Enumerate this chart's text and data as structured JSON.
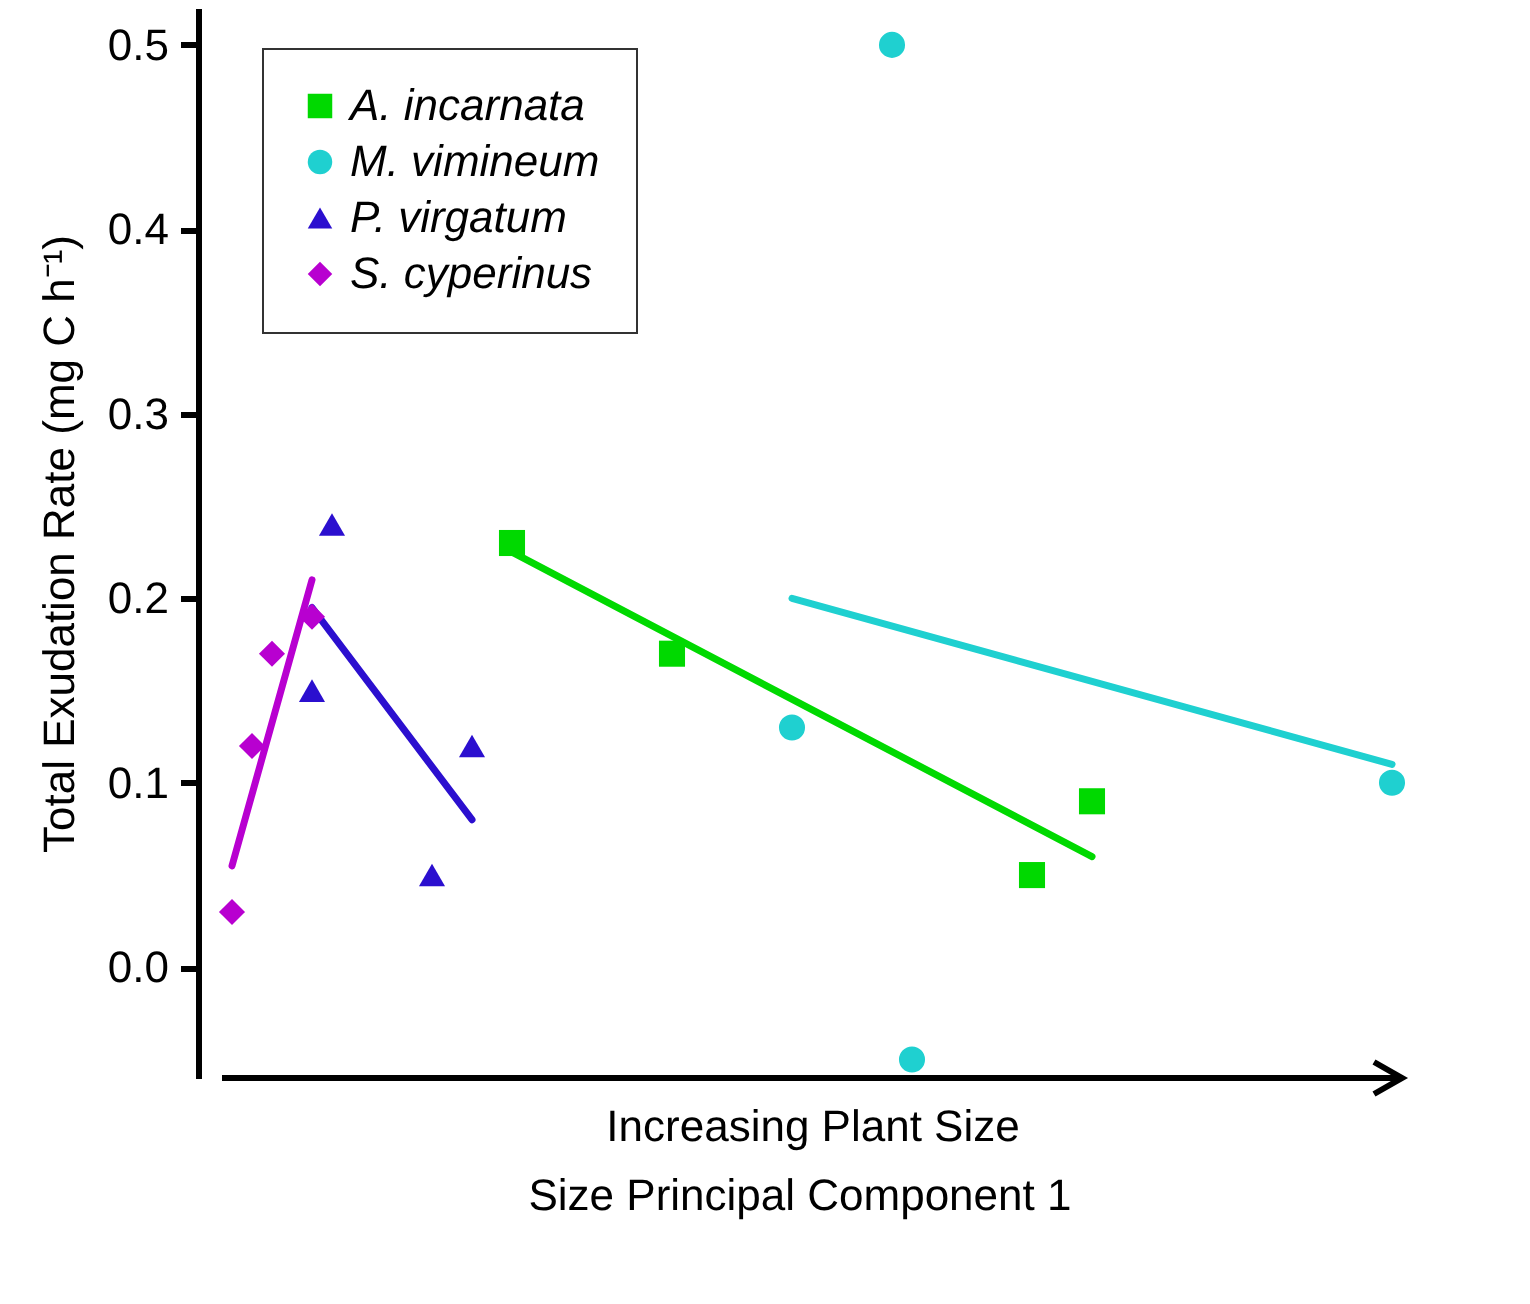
{
  "chart_data": {
    "type": "scatter",
    "xlabel": "Increasing Plant Size",
    "ylabel": "Total Exudation Rate (mg C h⁻¹)",
    "annotations": [
      "Size Principal Component 1"
    ],
    "categories": [
      null,
      null,
      null,
      null,
      null,
      null,
      null,
      null,
      null,
      null,
      null,
      null,
      null,
      null,
      null,
      null,
      null,
      null,
      null,
      null,
      null,
      null,
      null,
      null,
      null,
      null,
      null,
      null,
      null,
      null,
      null,
      null,
      null,
      null,
      null,
      null,
      null,
      null,
      null,
      null,
      null,
      null,
      null,
      null,
      null,
      null,
      null,
      null,
      null,
      null,
      null,
      null,
      null,
      null,
      null,
      null,
      null,
      null,
      null
    ],
    "ylim": [
      -0.06,
      0.52
    ],
    "yticks": [
      {
        "value": 0,
        "label": "0.0"
      },
      0.1,
      0.2,
      0.3,
      0.4,
      0.5
    ],
    "grid": false,
    "legend": "top left",
    "series": [
      {
        "name": "A. incarnata",
        "color": "#00d900",
        "marker": "square",
        "values": [
          null,
          null,
          null,
          null,
          null,
          null,
          null,
          null,
          null,
          null,
          null,
          null,
          null,
          null,
          0.23,
          null,
          null,
          null,
          null,
          null,
          null,
          null,
          0.17,
          null,
          null,
          null,
          null,
          null,
          null,
          null,
          null,
          null,
          null,
          null,
          null,
          null,
          null,
          null,
          null,
          null,
          0.05,
          null,
          null,
          0.09,
          null,
          null,
          null,
          null,
          null,
          null,
          null,
          null,
          null,
          null,
          null,
          null,
          null,
          null,
          null
        ]
      },
      {
        "name": "M. vimineum",
        "color": "#1fd0d0",
        "marker": "circle",
        "values": [
          null,
          null,
          null,
          null,
          null,
          null,
          null,
          null,
          null,
          null,
          null,
          null,
          null,
          null,
          null,
          null,
          null,
          null,
          null,
          null,
          null,
          null,
          null,
          null,
          null,
          null,
          null,
          null,
          0.13,
          null,
          null,
          null,
          null,
          0.5,
          -0.05,
          null,
          null,
          null,
          null,
          null,
          null,
          null,
          null,
          null,
          null,
          null,
          null,
          null,
          null,
          null,
          null,
          null,
          null,
          null,
          null,
          null,
          null,
          null,
          0.1
        ]
      },
      {
        "name": "P. virgatum",
        "color": "#2b0fcf",
        "marker": "triangle",
        "values": [
          null,
          null,
          null,
          null,
          0.15,
          0.24,
          null,
          null,
          null,
          null,
          0.05,
          null,
          0.12,
          null,
          null,
          null,
          null,
          null,
          null,
          null,
          null,
          null,
          null,
          null,
          null,
          null,
          null,
          null,
          null,
          null,
          null,
          null,
          null,
          null,
          null,
          null,
          null,
          null,
          null,
          null,
          null,
          null,
          null,
          null,
          null,
          null,
          null,
          null,
          null,
          null,
          null,
          null,
          null,
          null,
          null,
          null,
          null,
          null,
          null
        ]
      },
      {
        "name": "S. cyperinus",
        "color": "#b800d0",
        "marker": "diamond",
        "values": [
          0.03,
          0.12,
          0.17,
          null,
          0.19,
          null,
          null,
          null,
          null,
          null,
          null,
          null,
          null,
          null,
          null,
          null,
          null,
          null,
          null,
          null,
          null,
          null,
          null,
          null,
          null,
          null,
          null,
          null,
          null,
          null,
          null,
          null,
          null,
          null,
          null,
          null,
          null,
          null,
          null,
          null,
          null,
          null,
          null,
          null,
          null,
          null,
          null,
          null,
          null,
          null,
          null,
          null,
          null,
          null,
          null,
          null,
          null,
          null,
          null
        ]
      },
      {
        "type": "line",
        "color": "#00d900",
        "values": [
          null,
          null,
          null,
          null,
          null,
          null,
          null,
          null,
          null,
          null,
          null,
          null,
          null,
          null,
          0.225,
          null,
          null,
          null,
          null,
          null,
          null,
          null,
          null,
          null,
          null,
          null,
          null,
          null,
          null,
          null,
          null,
          null,
          null,
          null,
          null,
          null,
          null,
          null,
          null,
          null,
          null,
          null,
          null,
          0.06,
          null,
          null,
          null,
          null,
          null,
          null,
          null,
          null,
          null,
          null,
          null,
          null,
          null,
          null,
          null
        ]
      },
      {
        "type": "line",
        "color": "#1fd0d0",
        "values": [
          null,
          null,
          null,
          null,
          null,
          null,
          null,
          null,
          null,
          null,
          null,
          null,
          null,
          null,
          null,
          null,
          null,
          null,
          null,
          null,
          null,
          null,
          null,
          null,
          null,
          null,
          null,
          null,
          0.2,
          null,
          null,
          null,
          null,
          null,
          null,
          null,
          null,
          null,
          null,
          null,
          null,
          null,
          null,
          null,
          null,
          null,
          null,
          null,
          null,
          null,
          null,
          null,
          null,
          null,
          null,
          null,
          null,
          null,
          0.11
        ]
      },
      {
        "type": "line",
        "color": "#2b0fcf",
        "values": [
          null,
          null,
          null,
          null,
          0.195,
          null,
          null,
          null,
          null,
          null,
          null,
          null,
          0.08,
          null,
          null,
          null,
          null,
          null,
          null,
          null,
          null,
          null,
          null,
          null,
          null,
          null,
          null,
          null,
          null,
          null,
          null,
          null,
          null,
          null,
          null,
          null,
          null,
          null,
          null,
          null,
          null,
          null,
          null,
          null,
          null,
          null,
          null,
          null,
          null,
          null,
          null,
          null,
          null,
          null,
          null,
          null,
          null,
          null,
          null
        ]
      },
      {
        "type": "line",
        "color": "#b800d0",
        "values": [
          0.055,
          null,
          null,
          null,
          0.21,
          null,
          null,
          null,
          null,
          null,
          null,
          null,
          null,
          null,
          null,
          null,
          null,
          null,
          null,
          null,
          null,
          null,
          null,
          null,
          null,
          null,
          null,
          null,
          null,
          null,
          null,
          null,
          null,
          null,
          null,
          null,
          null,
          null,
          null,
          null,
          null,
          null,
          null,
          null,
          null,
          null,
          null,
          null,
          null,
          null,
          null,
          null,
          null,
          null,
          null,
          null,
          null,
          null,
          null
        ]
      }
    ]
  }
}
